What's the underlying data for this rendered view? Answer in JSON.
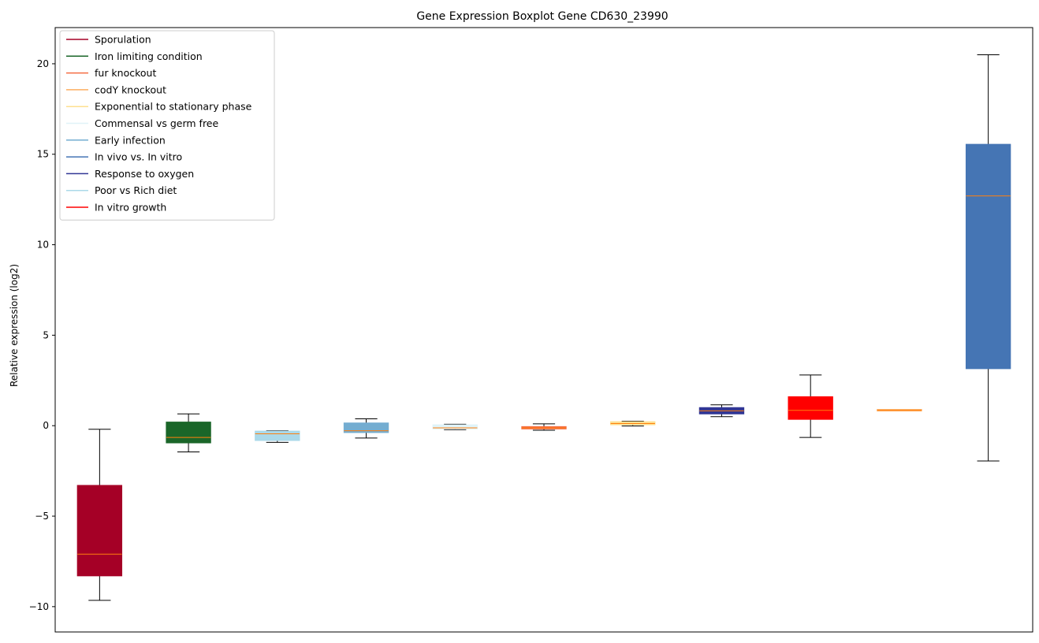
{
  "chart_data": {
    "type": "boxplot",
    "title": "Gene Expression Boxplot Gene CD630_23990",
    "xlabel": "",
    "ylabel": "Relative expression (log2)",
    "ylim": [
      -11.4,
      22.0
    ],
    "yticks": [
      -10,
      -5,
      0,
      5,
      10,
      15,
      20
    ],
    "ytick_labels": [
      "−10",
      "−5",
      "0",
      "5",
      "10",
      "15",
      "20"
    ],
    "xticks_visible": false,
    "legend_position": "upper-left",
    "legend": [
      {
        "label": "Sporulation",
        "color": "#a50026"
      },
      {
        "label": "Iron limiting condition",
        "color": "#1a6629"
      },
      {
        "label": "fur knockout",
        "color": "#f46d43"
      },
      {
        "label": "codY knockout",
        "color": "#fdae61"
      },
      {
        "label": "Exponential to stationary phase",
        "color": "#fee090"
      },
      {
        "label": "Commensal vs germ free",
        "color": "#e0f3f8"
      },
      {
        "label": "Early infection",
        "color": "#74add1"
      },
      {
        "label": "In vivo vs. In vitro",
        "color": "#4575b4"
      },
      {
        "label": "Response to oxygen",
        "color": "#313695"
      },
      {
        "label": "Poor vs Rich diet",
        "color": "#abd9e9"
      },
      {
        "label": "In vitro growth",
        "color": "#ff0000"
      }
    ],
    "boxes": [
      {
        "color": "#a50026",
        "whislo": -9.65,
        "q1": -8.3,
        "med": -7.1,
        "q3": -3.3,
        "whishi": -0.2
      },
      {
        "color": "#1a6629",
        "whislo": -1.45,
        "q1": -0.95,
        "med": -0.65,
        "q3": 0.2,
        "whishi": 0.65
      },
      {
        "color": "#abd9e9",
        "whislo": -0.92,
        "q1": -0.82,
        "med": -0.45,
        "q3": -0.3,
        "whishi": -0.28
      },
      {
        "color": "#74add1",
        "whislo": -0.68,
        "q1": -0.38,
        "med": -0.28,
        "q3": 0.15,
        "whishi": 0.38
      },
      {
        "color": "#e0f3f8",
        "whislo": -0.22,
        "q1": -0.18,
        "med": -0.12,
        "q3": 0.05,
        "whishi": 0.08
      },
      {
        "color": "#f46d43",
        "whislo": -0.25,
        "q1": -0.18,
        "med": -0.12,
        "q3": -0.05,
        "whishi": 0.1
      },
      {
        "color": "#fee090",
        "whislo": -0.02,
        "q1": 0.05,
        "med": 0.12,
        "q3": 0.22,
        "whishi": 0.25
      },
      {
        "color": "#313695",
        "whislo": 0.5,
        "q1": 0.65,
        "med": 0.82,
        "q3": 1.0,
        "whishi": 1.15
      },
      {
        "color": "#ff0000",
        "whislo": -0.65,
        "q1": 0.35,
        "med": 0.85,
        "q3": 1.6,
        "whishi": 2.8
      },
      {
        "color": "#fdae61",
        "whislo": 0.85,
        "q1": 0.85,
        "med": 0.85,
        "q3": 0.86,
        "whishi": 0.86
      },
      {
        "color": "#4575b4",
        "whislo": -1.95,
        "q1": 3.15,
        "med": 12.7,
        "q3": 15.55,
        "whishi": 20.5
      }
    ],
    "median_color": "#ff7f0e"
  }
}
